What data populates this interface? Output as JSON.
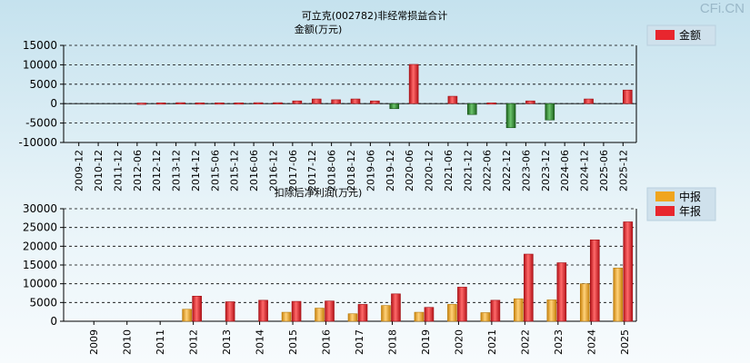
{
  "brand": "CFi.CN",
  "chart_data": [
    {
      "type": "bar",
      "title": "可立克(002782)非经常损益合计",
      "subtitle": "金额(万元)",
      "categories": [
        "2009-12",
        "2010-12",
        "2011-12",
        "2012-06",
        "2012-12",
        "2013-12",
        "2014-12",
        "2015-06",
        "2015-12",
        "2016-06",
        "2016-12",
        "2017-06",
        "2017-12",
        "2018-06",
        "2018-12",
        "2019-06",
        "2019-12",
        "2020-06",
        "2020-12",
        "2021-06",
        "2021-12",
        "2022-06",
        "2022-12",
        "2023-06",
        "2023-12",
        "2024-06",
        "2024-12",
        "2025-06",
        "2025-12"
      ],
      "series": [
        {
          "name": "金额",
          "values": [
            null,
            null,
            null,
            150,
            200,
            250,
            200,
            200,
            200,
            250,
            250,
            700,
            1200,
            1000,
            1200,
            700,
            -1300,
            10100,
            null,
            1900,
            -2800,
            200,
            -6200,
            700,
            -4200,
            null,
            1200,
            null,
            3500
          ]
        }
      ],
      "ylim": [
        -10000,
        15000
      ],
      "yticks": [
        "15000",
        "10000",
        "5000",
        "0",
        "-5000",
        "-10000"
      ],
      "legend": [
        "金额"
      ],
      "grid": true,
      "legend_position": "top-right"
    },
    {
      "type": "bar",
      "title": "扣除后净利润(万元)",
      "categories": [
        "2009",
        "2010",
        "2011",
        "2012",
        "2013",
        "2014",
        "2015",
        "2016",
        "2017",
        "2018",
        "2019",
        "2020",
        "2021",
        "2022",
        "2023",
        "2024",
        "2025"
      ],
      "series": [
        {
          "name": "中报",
          "values": [
            null,
            null,
            null,
            3200,
            null,
            null,
            2400,
            3500,
            2000,
            4200,
            2400,
            4500,
            2300,
            6000,
            5700,
            10000,
            14200
          ]
        },
        {
          "name": "年报",
          "values": [
            null,
            null,
            null,
            6700,
            5200,
            5600,
            5300,
            5400,
            4500,
            7300,
            3700,
            9100,
            5600,
            17900,
            15600,
            21700,
            26500
          ]
        }
      ],
      "ylim": [
        0,
        30000
      ],
      "yticks": [
        "30000",
        "25000",
        "20000",
        "15000",
        "10000",
        "5000",
        "0"
      ],
      "legend": [
        "中报",
        "年报"
      ],
      "grid": true,
      "legend_position": "top-right"
    }
  ],
  "colors": {
    "red": "#e8262e",
    "green": "#2f8a2f",
    "orange": "#f0a51e"
  }
}
